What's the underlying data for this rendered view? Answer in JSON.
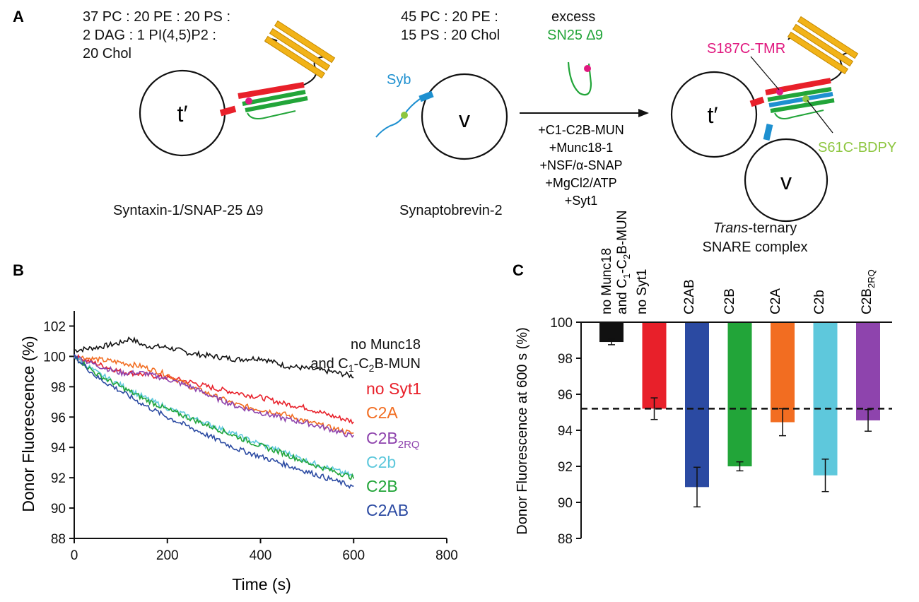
{
  "panelA": {
    "label": "A",
    "t_lipids": [
      "37 PC : 20 PE : 20 PS :",
      "2 DAG : 1 PI(4,5)P2 :",
      "20 Chol"
    ],
    "v_lipids": [
      "45 PC : 20 PE :",
      "15 PS : 20 Chol"
    ],
    "excess": "excess",
    "sn25": "SN25 ∆9",
    "syb": "Syb",
    "t_vesicle": "t′",
    "v_vesicle": "v",
    "t_caption": "Syntaxin-1/SNAP-25 ∆9",
    "v_caption": "Synaptobrevin-2",
    "additions": [
      "+C1-C2B-MUN",
      "+Munc18-1",
      "+NSF/α-SNAP",
      "+MgCl2/ATP",
      "+Syt1"
    ],
    "s187": "S187C-TMR",
    "s61": "S61C-BDPY",
    "product_line1_italic": "Trans",
    "product_line1_rest": "-ternary",
    "product_line2": "SNARE complex",
    "colors": {
      "red": "#e8202a",
      "green": "#22a539",
      "yellow": "#f2b318",
      "blue": "#1e90d0",
      "magenta": "#e0187f",
      "lime": "#8dc63f"
    }
  },
  "panelB": {
    "label": "B",
    "title_line1": "no Munc18",
    "title_line2": "and C1-C2B-MUN",
    "legend": [
      {
        "name": "no Syt1",
        "color": "#e8202a"
      },
      {
        "name": "C2A",
        "color": "#f26d21"
      },
      {
        "name": "C2B2RQ",
        "color": "#8e44ad"
      },
      {
        "name": "C2b",
        "color": "#5ec8dc"
      },
      {
        "name": "C2B",
        "color": "#22a539"
      },
      {
        "name": "C2AB",
        "color": "#2b4aa2"
      }
    ]
  },
  "panelC": {
    "label": "C",
    "bar_labels": [
      "no Munc18 and C1-C2B-MUN",
      "no Syt1",
      "C2AB",
      "C2B",
      "C2A",
      "C2b",
      "C2B2RQ"
    ]
  },
  "chart_data": [
    {
      "type": "line",
      "title": "",
      "xlabel": "Time (s)",
      "ylabel": "Donor Fluorescence (%)",
      "xlim": [
        0,
        800
      ],
      "ylim": [
        88,
        103
      ],
      "xticks": [
        0,
        200,
        400,
        600,
        800
      ],
      "yticks": [
        88,
        90,
        92,
        94,
        96,
        98,
        100,
        102
      ],
      "series": [
        {
          "name": "no Munc18 and C1-C2B-MUN",
          "color": "#111111",
          "x": [
            0,
            50,
            100,
            120,
            150,
            200,
            250,
            300,
            350,
            400,
            450,
            500,
            550,
            600
          ],
          "y": [
            100.4,
            100.6,
            100.9,
            101.2,
            100.7,
            100.6,
            100.2,
            100.0,
            99.8,
            99.9,
            99.4,
            99.2,
            99.0,
            98.7
          ]
        },
        {
          "name": "no Syt1",
          "color": "#e8202a",
          "x": [
            0,
            50,
            100,
            150,
            200,
            250,
            300,
            350,
            400,
            450,
            500,
            550,
            600
          ],
          "y": [
            100.0,
            99.5,
            99.0,
            98.8,
            98.6,
            98.3,
            97.9,
            97.6,
            97.3,
            96.9,
            96.6,
            96.1,
            95.7
          ]
        },
        {
          "name": "C2A",
          "color": "#f26d21",
          "x": [
            0,
            50,
            100,
            150,
            200,
            250,
            300,
            350,
            400,
            450,
            500,
            550,
            600
          ],
          "y": [
            100.0,
            99.8,
            99.6,
            99.3,
            98.8,
            98.0,
            97.4,
            96.8,
            96.5,
            96.2,
            95.7,
            95.3,
            94.9
          ]
        },
        {
          "name": "C2B2RQ",
          "color": "#8e44ad",
          "x": [
            0,
            50,
            100,
            150,
            200,
            250,
            300,
            350,
            400,
            450,
            500,
            550,
            600
          ],
          "y": [
            100.0,
            99.4,
            98.9,
            98.9,
            98.5,
            98.0,
            97.3,
            96.7,
            96.3,
            95.9,
            95.6,
            95.2,
            94.7
          ]
        },
        {
          "name": "C2b",
          "color": "#5ec8dc",
          "x": [
            0,
            50,
            100,
            150,
            200,
            250,
            300,
            350,
            400,
            450,
            500,
            550,
            600
          ],
          "y": [
            100.0,
            98.9,
            98.1,
            97.3,
            96.6,
            96.0,
            95.4,
            94.8,
            94.2,
            93.7,
            93.1,
            92.6,
            92.1
          ]
        },
        {
          "name": "C2B",
          "color": "#22a539",
          "x": [
            0,
            50,
            100,
            150,
            200,
            250,
            300,
            350,
            400,
            450,
            500,
            550,
            600
          ],
          "y": [
            100.0,
            98.8,
            98.0,
            97.2,
            96.5,
            95.9,
            95.3,
            94.7,
            94.1,
            93.6,
            93.0,
            92.5,
            92.0
          ]
        },
        {
          "name": "C2AB",
          "color": "#2b4aa2",
          "x": [
            0,
            50,
            100,
            150,
            200,
            250,
            300,
            350,
            400,
            450,
            500,
            550,
            600
          ],
          "y": [
            100.0,
            98.6,
            97.7,
            96.8,
            96.0,
            95.3,
            94.6,
            93.9,
            93.4,
            92.9,
            92.4,
            91.9,
            91.4
          ]
        }
      ],
      "annotations": [
        "no Munc18 and C1-C2B-MUN",
        "no Syt1",
        "C2A",
        "C2B2RQ",
        "C2b",
        "C2B",
        "C2AB"
      ]
    },
    {
      "type": "bar",
      "title": "",
      "xlabel": "",
      "ylabel": "Donor Fluorescence at 600 s (%)",
      "ylim": [
        88,
        100
      ],
      "yticks": [
        88,
        90,
        92,
        94,
        96,
        98,
        100
      ],
      "baseline": 100,
      "reference_line": 95.2,
      "categories": [
        "no Munc18 and C1-C2B-MUN",
        "no Syt1",
        "C2AB",
        "C2B",
        "C2A",
        "C2b",
        "C2B2RQ"
      ],
      "values": [
        98.9,
        95.2,
        90.85,
        92.0,
        94.45,
        91.5,
        94.55
      ],
      "errors": [
        0.15,
        0.6,
        1.1,
        0.25,
        0.75,
        0.9,
        0.6
      ],
      "colors": [
        "#111111",
        "#e8202a",
        "#2b4aa2",
        "#22a539",
        "#f26d21",
        "#5ec8dc",
        "#8e44ad"
      ]
    }
  ]
}
